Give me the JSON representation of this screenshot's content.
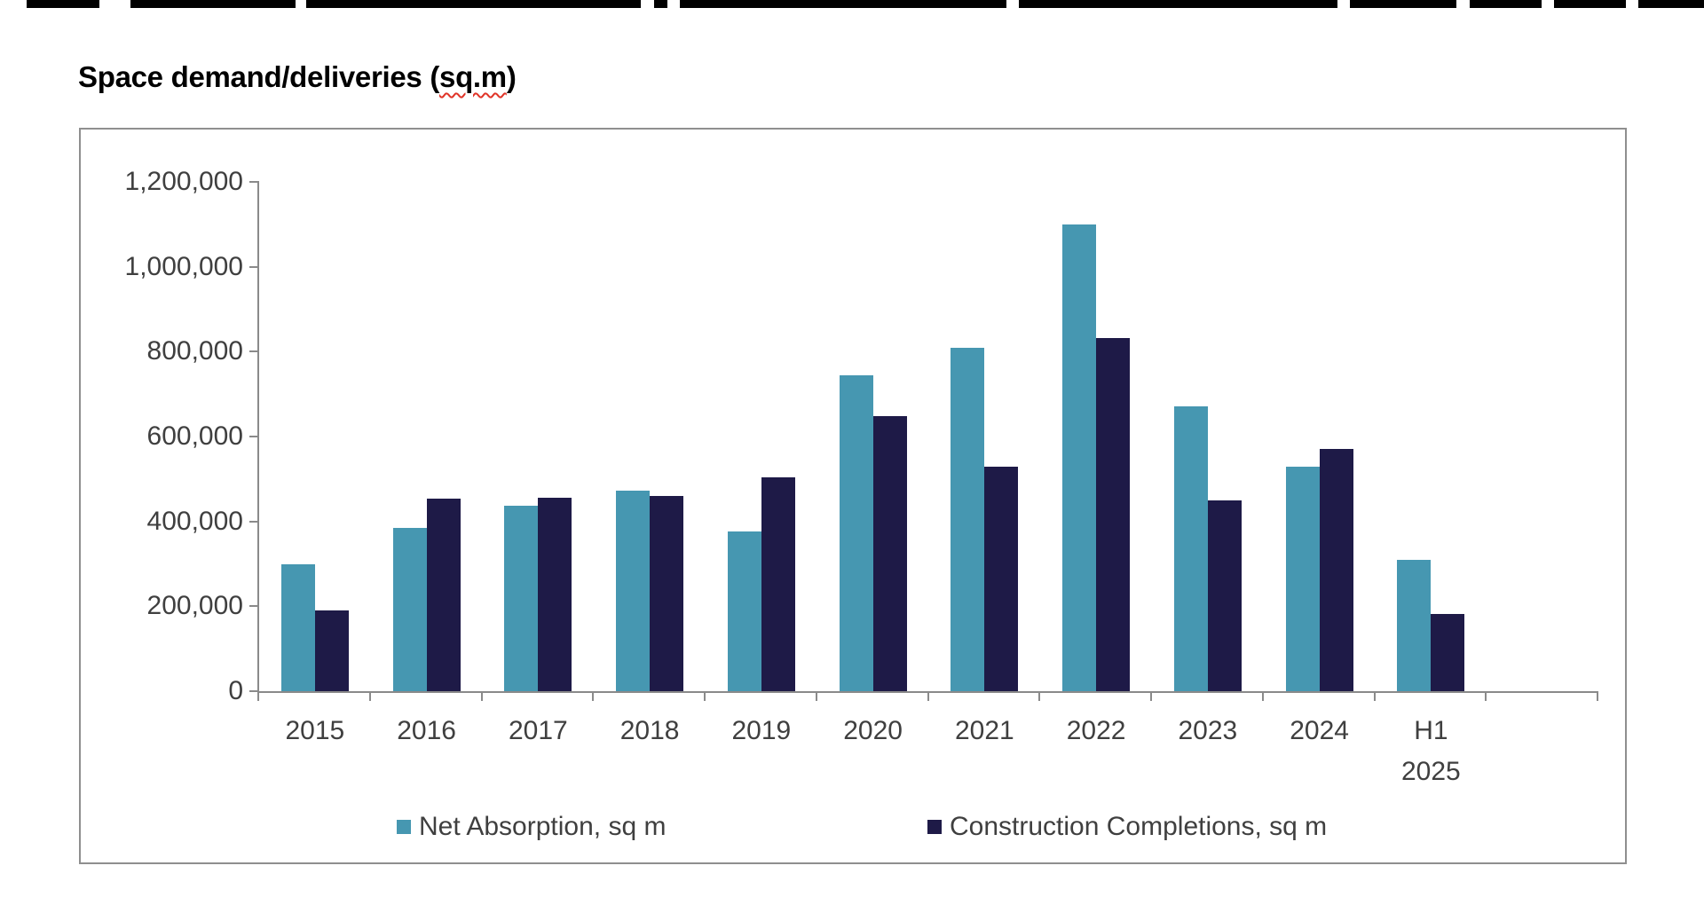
{
  "title": {
    "prefix": "Space demand/deliveries (",
    "misspelled_word": "sq.m",
    "suffix": ")"
  },
  "chart_data": {
    "type": "bar",
    "title": "Space demand/deliveries (sq.m)",
    "categories": [
      "2015",
      "2016",
      "2017",
      "2018",
      "2019",
      "2020",
      "2021",
      "2022",
      "2023",
      "2024",
      "H1 2025"
    ],
    "series": [
      {
        "name": "Net Absorption, sq m",
        "color": "#4697b1",
        "values": [
          300000,
          384000,
          437000,
          473000,
          376000,
          745000,
          809000,
          1100000,
          671000,
          528000,
          310000
        ]
      },
      {
        "name": "Construction Completions, sq m",
        "color": "#1e1a47",
        "values": [
          191000,
          453000,
          455000,
          459000,
          503000,
          648000,
          529000,
          833000,
          449000,
          571000,
          182000
        ]
      }
    ],
    "xlabel": "",
    "ylabel": "",
    "ylim": [
      0,
      1200000
    ],
    "ytick_step": 200000,
    "ytick_labels": [
      "0",
      "200,000",
      "400,000",
      "600,000",
      "800,000",
      "1,000,000",
      "1,200,000"
    ],
    "grid": false,
    "legend_position": "bottom",
    "extra_empty_category_slot": true
  },
  "colors": {
    "net_absorption": "#4697b1",
    "construction_completions": "#1e1a47",
    "axis": "#8a8a8a",
    "axis_text": "#3f3f3f",
    "container_border": "#8f8f8f",
    "squiggle": "#e03428"
  }
}
